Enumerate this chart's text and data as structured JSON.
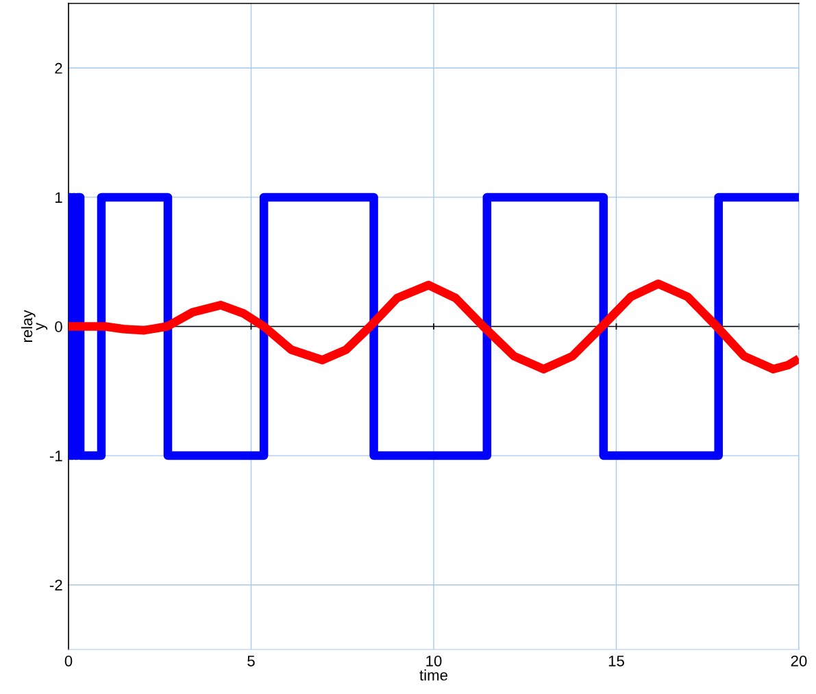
{
  "chart_data": {
    "type": "line",
    "xlabel": "time",
    "ylabel": "relay\ny",
    "xlim": [
      0,
      20
    ],
    "ylim": [
      -2.5,
      2.5
    ],
    "xticks": [
      0,
      5,
      10,
      15,
      20
    ],
    "yticks": [
      -2,
      -1,
      0,
      1,
      2
    ],
    "grid": true,
    "ref_lines": [
      {
        "axis": "y",
        "value": 0,
        "color": "#000000"
      }
    ],
    "series": [
      {
        "type": "step",
        "color": "#0000ff",
        "x": [
          0,
          0.06,
          0.12,
          0.18,
          0.24,
          0.32,
          0.9,
          2.72,
          5.35,
          8.36,
          11.46,
          14.65,
          17.8,
          20
        ],
        "values": [
          1,
          -1,
          1,
          -1,
          1,
          -1,
          1,
          -1,
          1,
          -1,
          1,
          -1,
          1,
          1
        ]
      },
      {
        "color": "#ff0000",
        "x": [
          0,
          0.5,
          1.0,
          1.5,
          2.07,
          2.7,
          3.4,
          4.17,
          4.8,
          5.35,
          6.1,
          6.95,
          7.6,
          8.26,
          9.0,
          9.86,
          10.6,
          11.36,
          12.2,
          13.01,
          13.8,
          14.61,
          15.4,
          16.15,
          16.95,
          17.75,
          18.5,
          19.3,
          19.7,
          20
        ],
        "values": [
          0,
          0,
          0,
          -0.02,
          -0.03,
          0,
          0.11,
          0.165,
          0.1,
          0,
          -0.18,
          -0.26,
          -0.18,
          0,
          0.22,
          0.32,
          0.22,
          0,
          -0.23,
          -0.33,
          -0.23,
          0,
          0.23,
          0.33,
          0.23,
          0,
          -0.23,
          -0.33,
          -0.3,
          -0.25
        ]
      }
    ]
  }
}
